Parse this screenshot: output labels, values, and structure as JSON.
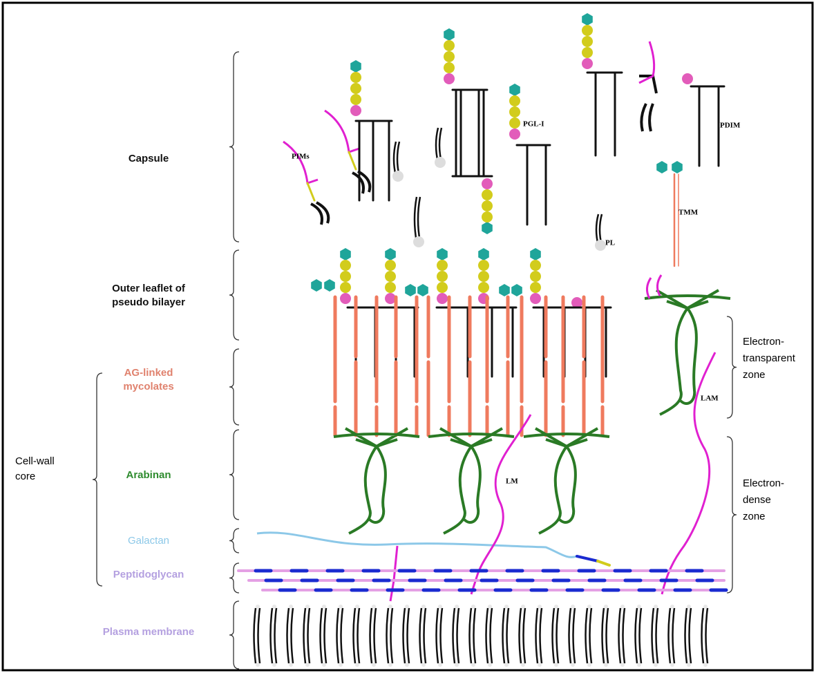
{
  "layers": [
    {
      "label": [
        "Capsule"
      ]
    },
    {
      "label": [
        "Outer leaflet of",
        "pseudo bilayer"
      ]
    },
    {
      "label": [
        "AG-linked",
        "mycolates"
      ]
    },
    {
      "label": [
        "Arabinan"
      ]
    },
    {
      "label": [
        "Galactan"
      ]
    },
    {
      "label": [
        "Peptidoglycan"
      ]
    },
    {
      "label": [
        "Plasma membrane"
      ]
    }
  ],
  "groups": [
    {
      "label": [
        "Cell-wall",
        "core"
      ]
    }
  ],
  "zones": [
    {
      "label": [
        "Electron-",
        "transparent",
        "zone"
      ]
    },
    {
      "label": [
        "Electron-",
        "dense",
        "zone"
      ]
    }
  ],
  "molecules": [
    {
      "label": "PIMs"
    },
    {
      "label": "PGL-I"
    },
    {
      "label": "PDIM"
    },
    {
      "label": "TMM"
    },
    {
      "label": "PL"
    },
    {
      "label": "LAM"
    },
    {
      "label": "LM"
    }
  ]
}
